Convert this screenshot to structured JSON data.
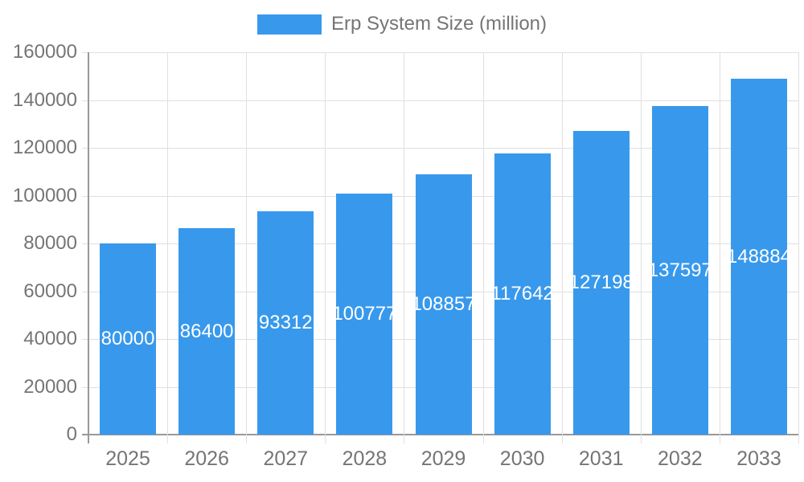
{
  "chart_data": {
    "type": "bar",
    "title": "",
    "xlabel": "",
    "ylabel": "",
    "legend": {
      "label": "Erp System Size (million)",
      "position": "top-center"
    },
    "categories": [
      "2025",
      "2026",
      "2027",
      "2028",
      "2029",
      "2030",
      "2031",
      "2032",
      "2033"
    ],
    "values": [
      80000,
      86400,
      93312,
      100777,
      108857,
      117642,
      127198,
      137597,
      148884
    ],
    "value_labels": [
      "80000",
      "86400",
      "93312",
      "100777",
      "108857",
      "117642",
      "127198",
      "137597",
      "148884"
    ],
    "ylim": [
      0,
      160000
    ],
    "yticks": [
      0,
      20000,
      40000,
      60000,
      80000,
      100000,
      120000,
      140000,
      160000
    ],
    "ytick_labels": [
      "0",
      "20000",
      "40000",
      "60000",
      "80000",
      "100000",
      "120000",
      "140000",
      "160000"
    ],
    "grid": true,
    "value_label_position": "center-of-bar",
    "colors": {
      "bar": "#3899ec",
      "axis": "#999999",
      "grid": "#e0e0e0",
      "tick_label": "#757575",
      "value_label": "#ffffff",
      "legend_text": "#757575"
    }
  }
}
